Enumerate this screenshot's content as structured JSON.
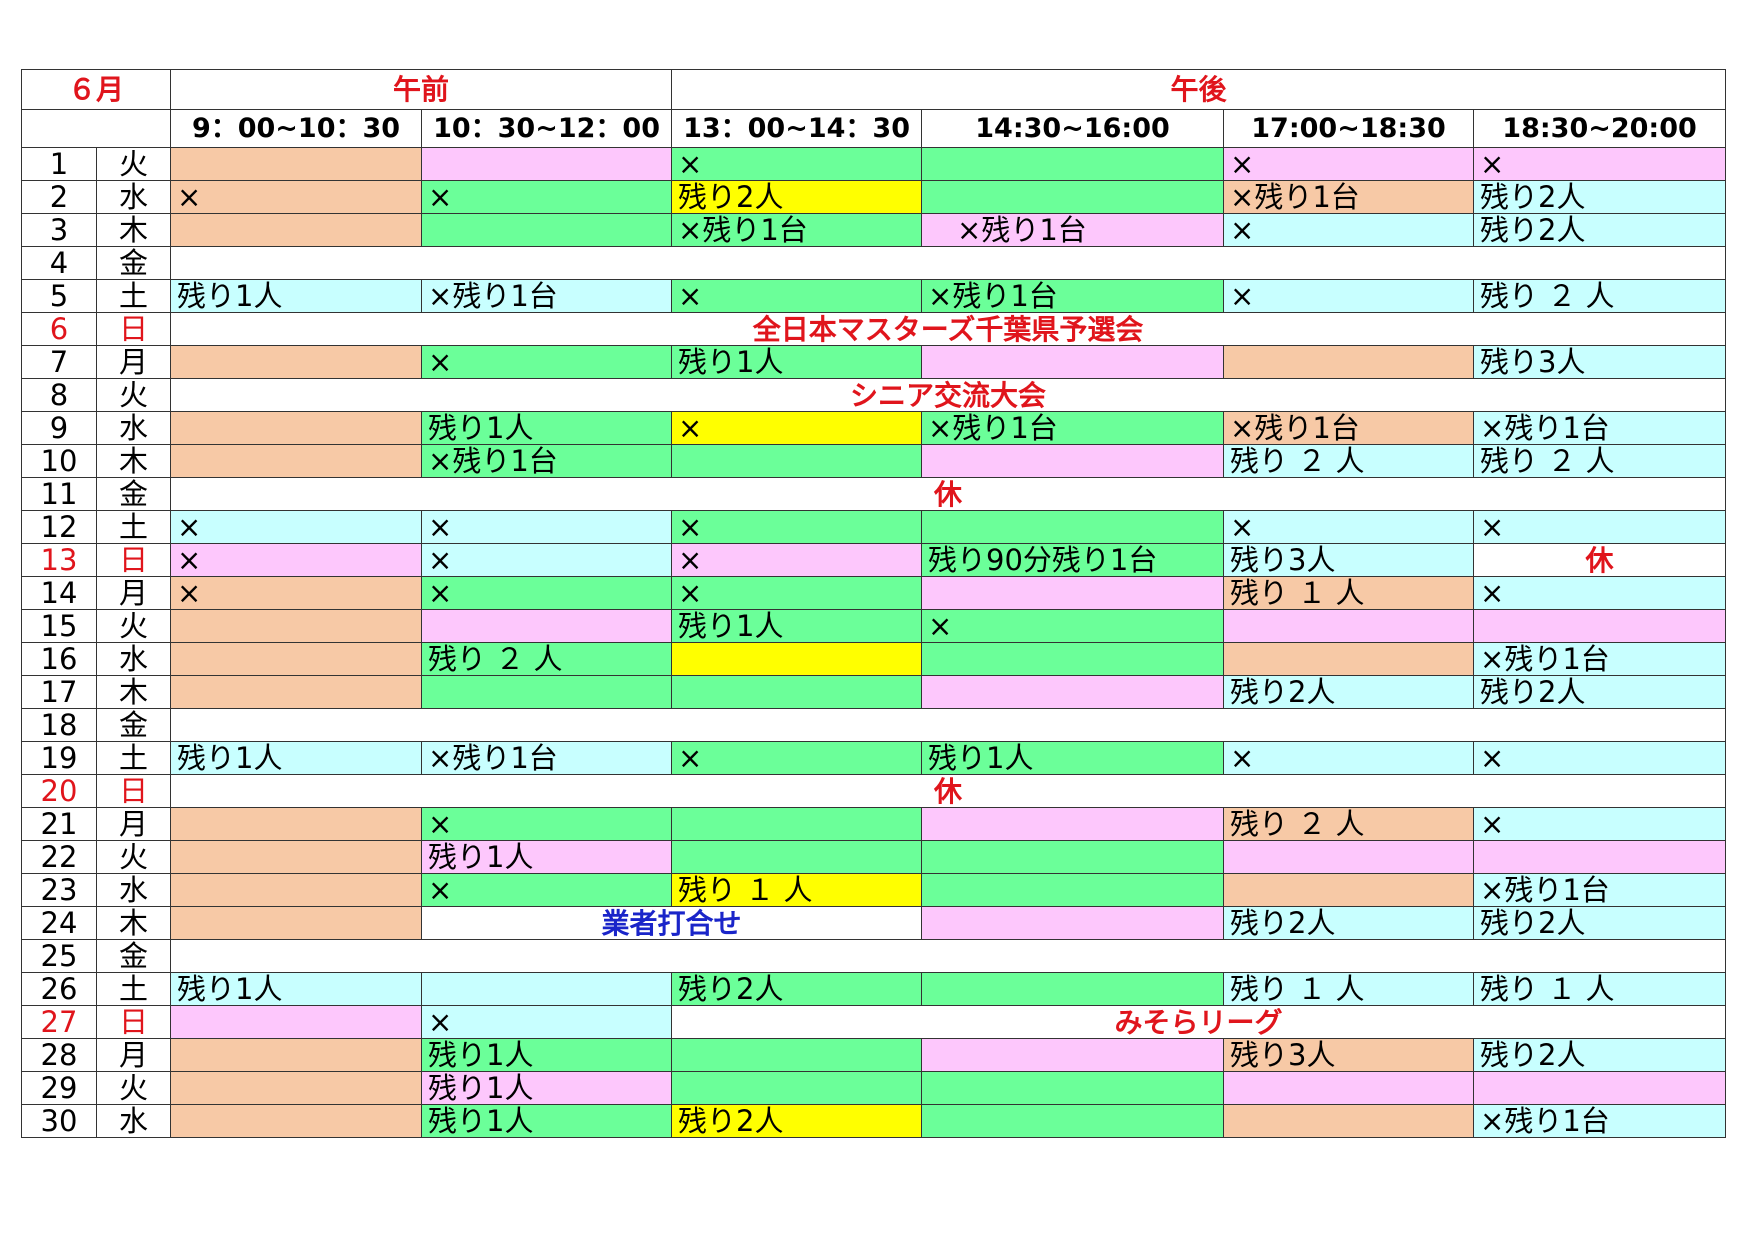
{
  "month_label": "６月",
  "period_am": "午前",
  "period_pm": "午後",
  "time_slots": [
    "9：00~10：30",
    "10：30~12：00",
    "13：00~14：30",
    "14:30~16:00",
    "17:00~18:30",
    "18:30~20:00"
  ],
  "colors": {
    "o": "#f7c9a6",
    "p": "#fdc7fc",
    "g": "#6bff99",
    "c": "#c8ffff",
    "y": "#ffff00",
    "w": "#ffffff",
    "red": "#e0151c",
    "blue": "#1a25c9"
  },
  "rows": [
    {
      "day": "1",
      "dow": "火",
      "slots": [
        {
          "t": "",
          "c": "o"
        },
        {
          "t": "",
          "c": "p"
        },
        {
          "t": "×",
          "c": "g"
        },
        {
          "t": "",
          "c": "g"
        },
        {
          "t": "×",
          "c": "p"
        },
        {
          "t": "×",
          "c": "p"
        }
      ]
    },
    {
      "day": "2",
      "dow": "水",
      "slots": [
        {
          "t": "×",
          "c": "o"
        },
        {
          "t": "×",
          "c": "g"
        },
        {
          "t": "残り2人",
          "c": "y"
        },
        {
          "t": "",
          "c": "g"
        },
        {
          "t": "×残り1台",
          "c": "o"
        },
        {
          "t": "残り2人",
          "c": "c"
        }
      ]
    },
    {
      "day": "3",
      "dow": "木",
      "slots": [
        {
          "t": "",
          "c": "o"
        },
        {
          "t": "",
          "c": "g"
        },
        {
          "t": "×残り1台",
          "c": "g"
        },
        {
          "t": "　×残り1台",
          "c": "p"
        },
        {
          "t": "×",
          "c": "c"
        },
        {
          "t": "残り2人",
          "c": "c"
        }
      ]
    },
    {
      "day": "4",
      "dow": "金",
      "event": {
        "start": 0,
        "span": 6,
        "t": "",
        "color": "red"
      }
    },
    {
      "day": "5",
      "dow": "土",
      "slots": [
        {
          "t": "残り1人",
          "c": "c"
        },
        {
          "t": "×残り1台",
          "c": "c"
        },
        {
          "t": "×",
          "c": "g"
        },
        {
          "t": "×残り1台",
          "c": "g"
        },
        {
          "t": "×",
          "c": "c"
        },
        {
          "t": "残り ２ 人",
          "c": "c"
        }
      ]
    },
    {
      "day": "6",
      "dow": "日",
      "sunday": true,
      "event": {
        "start": 0,
        "span": 6,
        "t": "全日本マスターズ千葉県予選会",
        "color": "red"
      }
    },
    {
      "day": "7",
      "dow": "月",
      "slots": [
        {
          "t": "",
          "c": "o"
        },
        {
          "t": "×",
          "c": "g"
        },
        {
          "t": "残り1人",
          "c": "g"
        },
        {
          "t": "",
          "c": "p"
        },
        {
          "t": "",
          "c": "o"
        },
        {
          "t": "残り3人",
          "c": "c"
        }
      ]
    },
    {
      "day": "8",
      "dow": "火",
      "event": {
        "start": 0,
        "span": 6,
        "t": "シニア交流大会",
        "color": "red"
      }
    },
    {
      "day": "9",
      "dow": "水",
      "slots": [
        {
          "t": "",
          "c": "o"
        },
        {
          "t": "残り1人",
          "c": "g"
        },
        {
          "t": "×",
          "c": "y"
        },
        {
          "t": "×残り1台",
          "c": "g"
        },
        {
          "t": "×残り1台",
          "c": "o"
        },
        {
          "t": "×残り1台",
          "c": "c"
        }
      ]
    },
    {
      "day": "10",
      "dow": "木",
      "slots": [
        {
          "t": "",
          "c": "o"
        },
        {
          "t": "×残り1台",
          "c": "g"
        },
        {
          "t": "",
          "c": "g"
        },
        {
          "t": "",
          "c": "p"
        },
        {
          "t": "残り ２ 人",
          "c": "c"
        },
        {
          "t": "残り ２ 人",
          "c": "c"
        }
      ]
    },
    {
      "day": "11",
      "dow": "金",
      "event": {
        "start": 0,
        "span": 6,
        "t": "休",
        "color": "red"
      }
    },
    {
      "day": "12",
      "dow": "土",
      "slots": [
        {
          "t": "×",
          "c": "c"
        },
        {
          "t": "×",
          "c": "c"
        },
        {
          "t": "×",
          "c": "g"
        },
        {
          "t": "",
          "c": "g"
        },
        {
          "t": "×",
          "c": "c"
        },
        {
          "t": "×",
          "c": "c"
        }
      ]
    },
    {
      "day": "13",
      "dow": "日",
      "sunday": true,
      "slots": [
        {
          "t": "×",
          "c": "p"
        },
        {
          "t": "×",
          "c": "c"
        },
        {
          "t": "×",
          "c": "p"
        },
        {
          "t": "残り90分残り1台",
          "c": "g"
        },
        {
          "t": "残り3人",
          "c": "c"
        },
        {
          "t": "休",
          "c": "w",
          "ev": "red"
        }
      ]
    },
    {
      "day": "14",
      "dow": "月",
      "slots": [
        {
          "t": "×",
          "c": "o"
        },
        {
          "t": "×",
          "c": "g"
        },
        {
          "t": "×",
          "c": "g"
        },
        {
          "t": "",
          "c": "p"
        },
        {
          "t": "残り １ 人",
          "c": "o"
        },
        {
          "t": "×",
          "c": "c"
        }
      ]
    },
    {
      "day": "15",
      "dow": "火",
      "slots": [
        {
          "t": "",
          "c": "o"
        },
        {
          "t": "",
          "c": "p"
        },
        {
          "t": "残り1人",
          "c": "g"
        },
        {
          "t": "×",
          "c": "g"
        },
        {
          "t": "",
          "c": "p"
        },
        {
          "t": "",
          "c": "p"
        }
      ]
    },
    {
      "day": "16",
      "dow": "水",
      "slots": [
        {
          "t": "",
          "c": "o"
        },
        {
          "t": "残り ２ 人",
          "c": "g"
        },
        {
          "t": "",
          "c": "y"
        },
        {
          "t": "",
          "c": "g"
        },
        {
          "t": "",
          "c": "o"
        },
        {
          "t": "×残り1台",
          "c": "c"
        }
      ]
    },
    {
      "day": "17",
      "dow": "木",
      "slots": [
        {
          "t": "",
          "c": "o"
        },
        {
          "t": "",
          "c": "g"
        },
        {
          "t": "",
          "c": "g"
        },
        {
          "t": "",
          "c": "p"
        },
        {
          "t": "残り2人",
          "c": "c"
        },
        {
          "t": "残り2人",
          "c": "c"
        }
      ]
    },
    {
      "day": "18",
      "dow": "金",
      "event": {
        "start": 0,
        "span": 6,
        "t": "",
        "color": "red"
      }
    },
    {
      "day": "19",
      "dow": "土",
      "slots": [
        {
          "t": "残り1人",
          "c": "c"
        },
        {
          "t": "×残り1台",
          "c": "c"
        },
        {
          "t": "×",
          "c": "g"
        },
        {
          "t": "残り1人",
          "c": "g"
        },
        {
          "t": "×",
          "c": "c"
        },
        {
          "t": "×",
          "c": "c"
        }
      ]
    },
    {
      "day": "20",
      "dow": "日",
      "sunday": true,
      "event": {
        "start": 0,
        "span": 6,
        "t": "休",
        "color": "red"
      }
    },
    {
      "day": "21",
      "dow": "月",
      "slots": [
        {
          "t": "",
          "c": "o"
        },
        {
          "t": "×",
          "c": "g"
        },
        {
          "t": "",
          "c": "g"
        },
        {
          "t": "",
          "c": "p"
        },
        {
          "t": "残り ２ 人",
          "c": "o"
        },
        {
          "t": "×",
          "c": "c"
        }
      ]
    },
    {
      "day": "22",
      "dow": "火",
      "slots": [
        {
          "t": "",
          "c": "o"
        },
        {
          "t": "残り1人",
          "c": "p"
        },
        {
          "t": "",
          "c": "g"
        },
        {
          "t": "",
          "c": "g"
        },
        {
          "t": "",
          "c": "p"
        },
        {
          "t": "",
          "c": "p"
        }
      ]
    },
    {
      "day": "23",
      "dow": "水",
      "slots": [
        {
          "t": "",
          "c": "o"
        },
        {
          "t": "×",
          "c": "g"
        },
        {
          "t": "残り １ 人",
          "c": "y"
        },
        {
          "t": "",
          "c": "g"
        },
        {
          "t": "",
          "c": "o"
        },
        {
          "t": "×残り1台",
          "c": "c"
        }
      ]
    },
    {
      "day": "24",
      "dow": "木",
      "slots": [
        {
          "t": "",
          "c": "o"
        },
        {
          "t": "業者打合せ",
          "c": "w",
          "span": 2,
          "ev": "blue"
        },
        {
          "t": "",
          "c": "p"
        },
        {
          "t": "残り2人",
          "c": "c"
        },
        {
          "t": "残り2人",
          "c": "c"
        }
      ]
    },
    {
      "day": "25",
      "dow": "金",
      "event": {
        "start": 0,
        "span": 6,
        "t": "",
        "color": "red"
      }
    },
    {
      "day": "26",
      "dow": "土",
      "slots": [
        {
          "t": "残り1人",
          "c": "c"
        },
        {
          "t": "",
          "c": "c"
        },
        {
          "t": "残り2人",
          "c": "g"
        },
        {
          "t": "",
          "c": "g"
        },
        {
          "t": "残り １ 人",
          "c": "c"
        },
        {
          "t": "残り １ 人",
          "c": "c"
        }
      ]
    },
    {
      "day": "27",
      "dow": "日",
      "sunday": true,
      "slots": [
        {
          "t": "",
          "c": "p"
        },
        {
          "t": "×",
          "c": "c"
        },
        {
          "t": "みそらリーグ",
          "c": "w",
          "span": 4,
          "ev": "red"
        }
      ]
    },
    {
      "day": "28",
      "dow": "月",
      "slots": [
        {
          "t": "",
          "c": "o"
        },
        {
          "t": "残り1人",
          "c": "g"
        },
        {
          "t": "",
          "c": "g"
        },
        {
          "t": "",
          "c": "p"
        },
        {
          "t": "残り3人",
          "c": "o"
        },
        {
          "t": "残り2人",
          "c": "c"
        }
      ]
    },
    {
      "day": "29",
      "dow": "火",
      "slots": [
        {
          "t": "",
          "c": "o"
        },
        {
          "t": "残り1人",
          "c": "p"
        },
        {
          "t": "",
          "c": "g"
        },
        {
          "t": "",
          "c": "g"
        },
        {
          "t": "",
          "c": "p"
        },
        {
          "t": "",
          "c": "p"
        }
      ]
    },
    {
      "day": "30",
      "dow": "水",
      "slots": [
        {
          "t": "",
          "c": "o"
        },
        {
          "t": "残り1人",
          "c": "g"
        },
        {
          "t": "残り2人",
          "c": "y"
        },
        {
          "t": "",
          "c": "g"
        },
        {
          "t": "",
          "c": "o"
        },
        {
          "t": "×残り1台",
          "c": "c"
        }
      ]
    }
  ]
}
